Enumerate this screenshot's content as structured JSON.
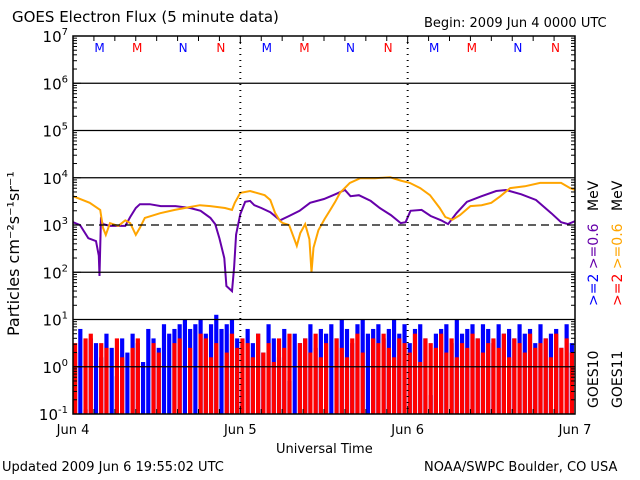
{
  "chart_data": {
    "type": "line",
    "title": "GOES Electron Flux (5 minute data)",
    "begin_label": "Begin: 2009 Jun 4 0000 UTC",
    "xlabel": "Universal Time",
    "ylabel": "Particles cm⁻²s⁻¹sr⁻¹",
    "x_unit": "hours since 2009 Jun 4 0000 UTC",
    "xlim": [
      0,
      72
    ],
    "x_ticks": [
      {
        "h": 0,
        "label": "Jun 4"
      },
      {
        "h": 24,
        "label": "Jun 5"
      },
      {
        "h": 48,
        "label": "Jun 6"
      },
      {
        "h": 72,
        "label": "Jun 7"
      }
    ],
    "yscale": "log",
    "ylim_log10": [
      -1,
      7
    ],
    "y_ticks": [
      {
        "exp": "7"
      },
      {
        "exp": "6"
      },
      {
        "exp": "5"
      },
      {
        "exp": "4"
      },
      {
        "exp": "3"
      },
      {
        "exp": "2"
      },
      {
        "exp": "1"
      },
      {
        "exp": "0"
      },
      {
        "exp": "-1"
      }
    ],
    "y_tick_base": "10",
    "threshold_log10": 3,
    "markers": [
      {
        "h": 3.8,
        "label": "M",
        "color": "#0000ff"
      },
      {
        "h": 9.2,
        "label": "M",
        "color": "#ff0000"
      },
      {
        "h": 15.8,
        "label": "N",
        "color": "#0000ff"
      },
      {
        "h": 21.2,
        "label": "N",
        "color": "#ff0000"
      },
      {
        "h": 27.8,
        "label": "M",
        "color": "#0000ff"
      },
      {
        "h": 33.2,
        "label": "M",
        "color": "#ff0000"
      },
      {
        "h": 39.8,
        "label": "N",
        "color": "#0000ff"
      },
      {
        "h": 45.2,
        "label": "N",
        "color": "#ff0000"
      },
      {
        "h": 51.8,
        "label": "M",
        "color": "#0000ff"
      },
      {
        "h": 57.2,
        "label": "M",
        "color": "#ff0000"
      },
      {
        "h": 63.8,
        "label": "N",
        "color": "#0000ff"
      },
      {
        "h": 69.2,
        "label": "N",
        "color": "#ff0000"
      }
    ],
    "legend": {
      "placement": "right",
      "energy_labels": [
        {
          "text": ">=2 >=0.6 MeV",
          "parts": [
            ">=2",
            ">=0.6",
            "MeV"
          ],
          "colors": [
            "#0000ff",
            "#6600aa",
            "#000000"
          ],
          "satellite": "GOES10"
        },
        {
          "text": ">=2 >=0.6 MeV",
          "parts": [
            ">=2",
            ">=0.6",
            "MeV"
          ],
          "colors": [
            "#ff0000",
            "#ffa500",
            "#000000"
          ],
          "satellite": "GOES11"
        }
      ]
    },
    "series": [
      {
        "name": "GOES10 >=0.6 MeV",
        "color": "#6600aa",
        "style": "line",
        "h": [
          0,
          1,
          2.2,
          3.3,
          3.7,
          3.8,
          4.0,
          4.3,
          5.3,
          7.5,
          8.2,
          9,
          9.6,
          11,
          12.6,
          14.7,
          16.8,
          18.3,
          19.7,
          20.4,
          21,
          21.7,
          22,
          22.8,
          23.1,
          23.4,
          24,
          24.7,
          25.4,
          26,
          27,
          28.3,
          29.7,
          31,
          32.5,
          34,
          36,
          37.6,
          39,
          39.8,
          41,
          42.7,
          44,
          45.6,
          47,
          47.7,
          48.4,
          50,
          51.3,
          52.8,
          53.8,
          55,
          56.5,
          58.6,
          60.7,
          62.1,
          64.3,
          66.4,
          68.6,
          70,
          71,
          72
        ],
        "log10_flux": [
          3.06,
          3.0,
          2.72,
          2.66,
          2.35,
          1.92,
          3.1,
          3.02,
          2.98,
          2.98,
          3.17,
          3.36,
          3.44,
          3.44,
          3.4,
          3.4,
          3.36,
          3.3,
          3.15,
          3.02,
          2.72,
          2.3,
          1.71,
          1.6,
          2.1,
          2.8,
          3.23,
          3.49,
          3.51,
          3.42,
          3.36,
          3.27,
          3.1,
          3.19,
          3.3,
          3.47,
          3.55,
          3.65,
          3.74,
          3.61,
          3.63,
          3.51,
          3.36,
          3.21,
          3.04,
          3.06,
          3.3,
          3.32,
          3.19,
          3.1,
          3.02,
          3.25,
          3.49,
          3.61,
          3.72,
          3.74,
          3.65,
          3.53,
          3.25,
          3.06,
          3.02,
          3.08
        ]
      },
      {
        "name": "GOES11 >=0.6 MeV",
        "color": "#ffa500",
        "style": "line",
        "h": [
          0,
          2.4,
          3.9,
          4.3,
          4.7,
          5.3,
          6.5,
          7.5,
          8.2,
          9,
          9.6,
          10.3,
          12.5,
          14.6,
          16.8,
          18.2,
          19.7,
          21.8,
          22.8,
          23.2,
          24,
          25.4,
          27.5,
          28.3,
          29,
          29.7,
          30.1,
          31,
          31.7,
          32.1,
          32.6,
          33.3,
          33.9,
          34.2,
          34.5,
          35.2,
          36.1,
          36.9,
          37.6,
          38.3,
          39.7,
          41.2,
          43.3,
          45.5,
          47,
          48.3,
          49.8,
          51.2,
          52.6,
          53.4,
          54.4,
          55.5,
          57,
          58.6,
          60,
          61.3,
          62.7,
          64.8,
          67,
          70,
          71.3,
          72
        ],
        "log10_flux": [
          3.61,
          3.47,
          3.32,
          2.94,
          2.79,
          3.04,
          2.98,
          3.1,
          3.04,
          2.79,
          2.94,
          3.15,
          3.25,
          3.32,
          3.38,
          3.42,
          3.4,
          3.36,
          3.32,
          3.47,
          3.68,
          3.72,
          3.63,
          3.53,
          3.25,
          3.08,
          3.04,
          3.0,
          2.72,
          2.56,
          2.83,
          3.02,
          2.7,
          2.0,
          2.52,
          2.89,
          3.13,
          3.32,
          3.49,
          3.68,
          3.89,
          3.99,
          3.99,
          4.01,
          3.94,
          3.89,
          3.78,
          3.63,
          3.36,
          3.17,
          3.11,
          3.21,
          3.4,
          3.42,
          3.47,
          3.61,
          3.78,
          3.82,
          3.89,
          3.89,
          3.78,
          3.74
        ]
      },
      {
        "name": "GOES10 >=2 MeV",
        "color": "#0000ff",
        "style": "bars",
        "interval_hours": 0.75,
        "log10_flux": [
          0.3,
          0.8,
          -0.9,
          0.6,
          0.5,
          0.2,
          0.7,
          0.4,
          -0.2,
          0.6,
          0.3,
          0.7,
          0.5,
          0.1,
          0.8,
          0.6,
          0.4,
          0.9,
          0.7,
          0.8,
          0.9,
          1.0,
          0.8,
          0.9,
          1.0,
          0.7,
          0.9,
          1.1,
          0.8,
          0.9,
          1.0,
          0.6,
          -0.5,
          0.8,
          0.5,
          0.7,
          0.3,
          0.9,
          0.6,
          0.2,
          0.8,
          -0.3,
          0.7,
          0.5,
          0.6,
          0.9,
          0.4,
          0.8,
          0.7,
          0.9,
          0.6,
          1.0,
          0.8,
          0.5,
          0.9,
          1.0,
          0.7,
          0.8,
          0.9,
          0.6,
          0.8,
          1.0,
          0.7,
          0.9,
          0.5,
          0.8,
          0.9,
          0.6,
          -0.6,
          0.7,
          0.8,
          0.9,
          0.5,
          1.0,
          0.7,
          0.8,
          0.9,
          0.6,
          0.9,
          0.8,
          0.5,
          0.9,
          0.7,
          0.8,
          0.6,
          0.9,
          0.7,
          0.8,
          0.5,
          0.9,
          0.6,
          0.7,
          0.8,
          0.4,
          0.9,
          0.5
        ]
      },
      {
        "name": "GOES11 >=2 MeV",
        "color": "#ff0000",
        "style": "bars",
        "interval_hours": 0.75,
        "log10_flux": [
          0.5,
          -1,
          0.6,
          0.7,
          -1,
          0.5,
          0.4,
          -1,
          0.6,
          0.2,
          -1,
          0.4,
          0.6,
          -1,
          -1,
          0.5,
          0.3,
          -1,
          -1,
          0.5,
          0.6,
          -1,
          0.4,
          -1,
          0.7,
          0.6,
          0.2,
          0.5,
          -1,
          0.3,
          0.7,
          0.4,
          0.6,
          0.5,
          0.2,
          0.7,
          0.3,
          0.5,
          0.1,
          0.6,
          0.4,
          0.7,
          -1,
          0.5,
          0.6,
          0.3,
          0.7,
          0.2,
          0.5,
          -1,
          0.6,
          0.4,
          0.2,
          0.6,
          0.7,
          0.3,
          -1,
          0.6,
          0.5,
          0.7,
          0.4,
          0.2,
          0.6,
          0.5,
          0.3,
          0.7,
          0.1,
          0.6,
          0.5,
          0.4,
          0.7,
          0.3,
          0.6,
          0.2,
          0.5,
          0.4,
          0.7,
          0.6,
          0.3,
          0.5,
          0.6,
          0.4,
          0.7,
          0.2,
          0.6,
          0.5,
          0.3,
          0.7,
          0.4,
          0.5,
          0.6,
          0.2,
          0.7,
          0.4,
          0.6,
          0.3
        ]
      }
    ]
  },
  "footer": {
    "updated": "Updated 2009 Jun  6 19:55:02 UTC",
    "source": "NOAA/SWPC Boulder, CO USA"
  }
}
